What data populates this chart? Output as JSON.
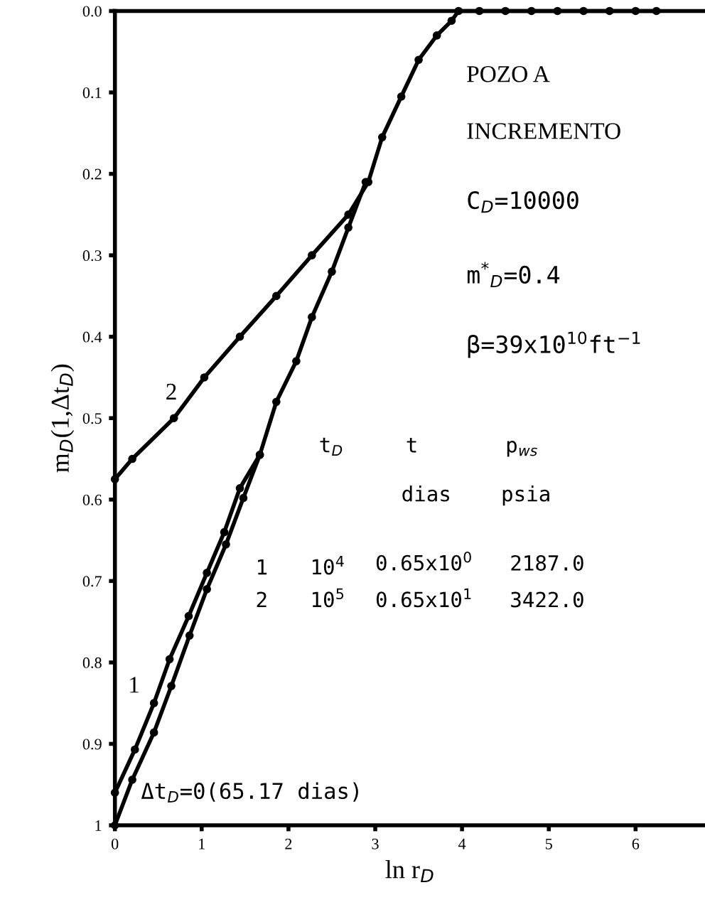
{
  "chart_data": {
    "type": "line",
    "xlabel": "ln r$_{D}$",
    "ylabel": "m$_{D}$(1,Δt$_{D}$)",
    "xlim": [
      0,
      6.8
    ],
    "xticks": [
      0,
      1,
      2,
      3,
      4,
      5,
      6
    ],
    "ylim": [
      1,
      0
    ],
    "yticks": [
      {
        "value": 0,
        "label": "0.0"
      },
      0.1,
      0.2,
      0.3,
      0.4,
      0.5,
      0.6,
      0.7,
      0.8,
      0.9,
      1
    ],
    "grid": false,
    "marker": "circle",
    "line_style": "solid",
    "series": [
      {
        "name": "2",
        "color": "#000000",
        "x": [
          0,
          0.2,
          0.68,
          1.03,
          1.44,
          1.86,
          2.27,
          2.69,
          2.92,
          3.08,
          3.3,
          3.5,
          3.71,
          3.88,
          3.96,
          4.2,
          4.5,
          4.8,
          5.1,
          5.4,
          5.7,
          6.0,
          6.24
        ],
        "values": [
          0.575,
          0.55,
          0.5,
          0.45,
          0.4,
          0.35,
          0.3,
          0.25,
          0.21,
          0.155,
          0.105,
          0.06,
          0.03,
          0.012,
          0,
          0,
          0,
          0,
          0,
          0,
          0,
          0,
          0
        ]
      },
      {
        "name": "1",
        "color": "#000000",
        "x": [
          0,
          0.23,
          0.45,
          0.63,
          0.85,
          1.06,
          1.26,
          1.44,
          1.67,
          1.86,
          2.09,
          2.27,
          2.5,
          2.69,
          2.89
        ],
        "values": [
          0.96,
          0.907,
          0.85,
          0.796,
          0.743,
          0.69,
          0.64,
          0.586,
          0.545,
          0.48,
          0.43,
          0.376,
          0.32,
          0.266,
          0.21
        ]
      },
      {
        "name": "Δt$_{D}$=0(65.17 dias)",
        "color": "#000000",
        "x": [
          0,
          0.2,
          0.45,
          0.65,
          0.86,
          1.06,
          1.28,
          1.48,
          1.67
        ],
        "values": [
          1.0,
          0.944,
          0.886,
          0.829,
          0.767,
          0.71,
          0.655,
          0.598,
          0.545
        ]
      }
    ],
    "annotations": [
      "POZO A",
      "INCREMENTO",
      "C$_{D}$=10000",
      "m$^{*}$$_{D}$=0.4",
      "β=39x10$^{10}$ft$^{−1}$",
      "t$_{D}$",
      "t",
      "p$_{ws}$",
      "dias",
      "psia",
      "1",
      "10$^{4}$",
      "0.65x10$^{0}$",
      "2187.0",
      "2",
      "10$^{5}$",
      "0.65x10$^{1}$",
      "3422.0"
    ]
  }
}
